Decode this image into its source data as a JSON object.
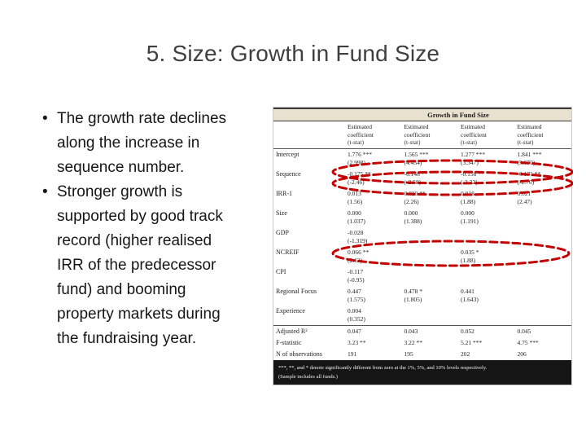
{
  "slide": {
    "title": "5. Size: Growth in Fund Size",
    "bullets": [
      "The growth rate declines along the increase in sequence number.",
      "Stronger growth is supported by good track record (higher realised IRR of the predecessor fund) and booming property markets during the fundraising year."
    ]
  },
  "annotation": {
    "color": "#c40000"
  },
  "table": {
    "title": "Growth in Fund Size",
    "column_header": {
      "coef": "Estimated coefficient",
      "tstat": "(t-stat)"
    },
    "rows": [
      {
        "label": "Intercept",
        "coefs": [
          "1.776 ***",
          "1.565 ***",
          "1.277 ***",
          "1.841 ***"
        ],
        "tstats": [
          "(2.998)",
          "(4.454)",
          "(3.347)",
          "(5.670)"
        ]
      },
      {
        "label": "Sequence",
        "coefs": [
          "-0.175 **",
          "-0.148 **",
          "-0.158 **",
          "-0.171 **"
        ],
        "tstats": [
          "(-2.46)",
          "(-2.58)",
          "(-2.32)",
          "(-2.76)"
        ]
      },
      {
        "label": "IRR-1",
        "coefs": [
          "0.013",
          "0.020 **",
          "0.018",
          "0.021"
        ],
        "tstats": [
          "(1.56)",
          "(2.26)",
          "(1.88)",
          "(2.47)"
        ]
      },
      {
        "label": "Size",
        "coefs": [
          "0.000",
          "0.000",
          "0.000",
          ""
        ],
        "tstats": [
          "(1.037)",
          "(1.388)",
          "(1.191)",
          ""
        ]
      },
      {
        "label": "GDP",
        "coefs": [
          "-0.028",
          "",
          "",
          ""
        ],
        "tstats": [
          "(-1.319)",
          "",
          "",
          ""
        ]
      },
      {
        "label": "NCREIF",
        "coefs": [
          "0.066 **",
          "",
          "0.035 *",
          ""
        ],
        "tstats": [
          "(2.12)",
          "",
          "(1.88)",
          ""
        ]
      },
      {
        "label": "CPI",
        "coefs": [
          "-0.117",
          "",
          "",
          ""
        ],
        "tstats": [
          "(-0.95)",
          "",
          "",
          ""
        ]
      },
      {
        "label": "Regional Focus",
        "coefs": [
          "0.447",
          "0.478 *",
          "0.441",
          ""
        ],
        "tstats": [
          "(1.575)",
          "(1.805)",
          "(1.643)",
          ""
        ]
      },
      {
        "label": "Experience",
        "coefs": [
          "0.004",
          "",
          "",
          ""
        ],
        "tstats": [
          "(0.352)",
          "",
          "",
          ""
        ]
      },
      {
        "label": "Adjusted R²",
        "rule_above": true,
        "coefs": [
          "0.047",
          "0.043",
          "0.052",
          "0.045"
        ],
        "tstats": []
      },
      {
        "label": "F-statistic",
        "coefs": [
          "3.23 **",
          "3.22 **",
          "5.21 ***",
          "4.75 ***"
        ],
        "tstats": []
      },
      {
        "label": "N of observations",
        "coefs": [
          "191",
          "195",
          "202",
          "206"
        ],
        "tstats": []
      }
    ],
    "footnotes": [
      "***, **, and * denote significantly different from zero at the 1%, 5%, and 10% levels respectively.",
      "(Sample includes all funds.)"
    ]
  }
}
